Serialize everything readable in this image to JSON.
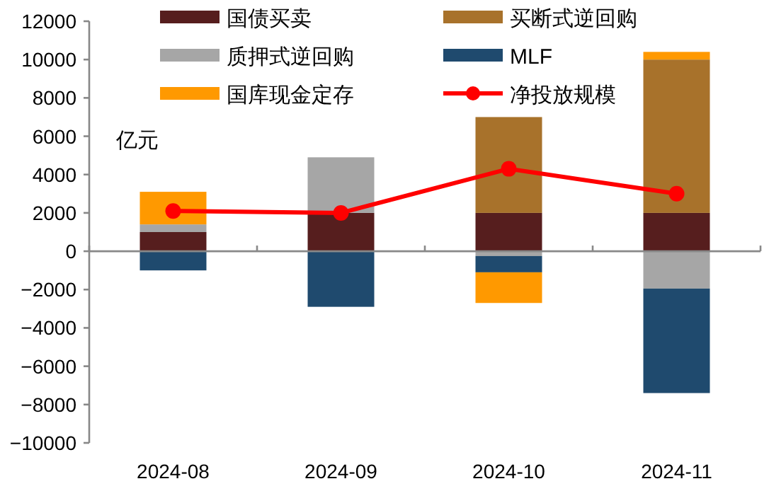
{
  "chart_data": {
    "type": "bar",
    "stacked": true,
    "ylabel": "亿元",
    "categories": [
      "2024-08",
      "2024-09",
      "2024-10",
      "2024-11"
    ],
    "series": [
      {
        "name": "国债买卖",
        "color": "#561e1e",
        "values": [
          1000,
          2000,
          2000,
          2000
        ]
      },
      {
        "name": "买断式逆回购",
        "color": "#a8722b",
        "values": [
          null,
          null,
          5000,
          8000
        ]
      },
      {
        "name": "质押式逆回购",
        "color": "#a6a6a6",
        "values": [
          400,
          2900,
          -250,
          -1950
        ]
      },
      {
        "name": "MLF",
        "color": "#1f4a6e",
        "values": [
          -1000,
          -2900,
          -850,
          -5450
        ]
      },
      {
        "name": "国库现金定存",
        "color": "#ff9900",
        "values": [
          1700,
          null,
          -1600,
          400
        ]
      },
      {
        "name": "净投放规模",
        "color": "#ff0000",
        "type": "line",
        "marker": "circle",
        "values": [
          2100,
          2000,
          4300,
          3000
        ]
      }
    ],
    "ylim": [
      -10000,
      12000
    ],
    "yticks": [
      -10000,
      -8000,
      -6000,
      -4000,
      -2000,
      0,
      2000,
      4000,
      6000,
      8000,
      10000,
      12000
    ],
    "legend": "top"
  }
}
